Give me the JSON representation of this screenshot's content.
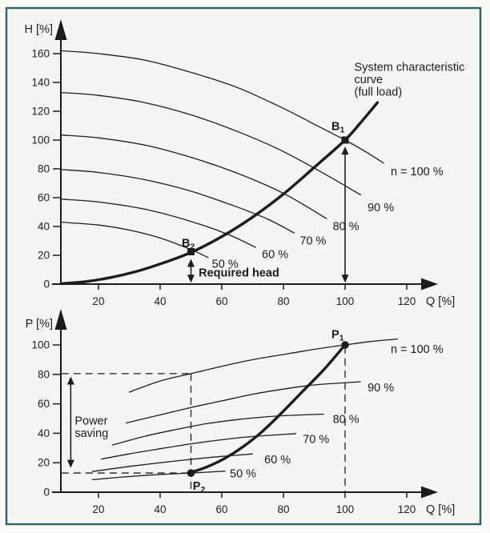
{
  "frame": {
    "border_color": "#2e6366",
    "inner_background": "#f5f5f1",
    "line_color": "#1c1c1c"
  },
  "chart_data": [
    {
      "type": "line",
      "panel": "top",
      "xlabel": "Q [%]",
      "ylabel": "H [%]",
      "xlim": [
        0,
        130
      ],
      "ylim": [
        0,
        175
      ],
      "xticks": [
        20,
        40,
        60,
        80,
        100,
        120
      ],
      "yticks": [
        0,
        20,
        40,
        60,
        80,
        100,
        120,
        140,
        160
      ],
      "grid": false,
      "series": [
        {
          "name": "system-characteristic-curve",
          "thick": true,
          "points": [
            [
              8,
              0.3
            ],
            [
              16,
              1.8
            ],
            [
              24,
              4.6
            ],
            [
              32,
              8.6
            ],
            [
              40,
              14
            ],
            [
              50,
              22
            ],
            [
              60,
              33
            ],
            [
              70,
              46.5
            ],
            [
              80,
              62.5
            ],
            [
              90,
              81
            ],
            [
              100,
              100
            ],
            [
              105,
              112
            ],
            [
              110.5,
              126
            ]
          ]
        },
        {
          "name": "pump-curve-n100",
          "label": "n = 100 %",
          "label_at": [
            114.8,
            78
          ],
          "points": [
            [
              8,
              162
            ],
            [
              20,
              160
            ],
            [
              35,
              155.5
            ],
            [
              50,
              147
            ],
            [
              65,
              136.5
            ],
            [
              80,
              122
            ],
            [
              90,
              111
            ],
            [
              100,
              100
            ],
            [
              107,
              91.5
            ],
            [
              112.5,
              84
            ]
          ]
        },
        {
          "name": "pump-curve-n90",
          "label": "90 %",
          "label_at": [
            107.3,
            53
          ],
          "points": [
            [
              8,
              133
            ],
            [
              20,
              131
            ],
            [
              35,
              126
            ],
            [
              50,
              117.5
            ],
            [
              65,
              106
            ],
            [
              80,
              92
            ],
            [
              95,
              74.5
            ],
            [
              105,
              62
            ]
          ]
        },
        {
          "name": "pump-curve-n80",
          "label": "80 %",
          "label_at": [
            96,
            40
          ],
          "points": [
            [
              8,
              103.5
            ],
            [
              20,
              101.5
            ],
            [
              35,
              96.5
            ],
            [
              50,
              88
            ],
            [
              65,
              77
            ],
            [
              80,
              63
            ],
            [
              94,
              45.5
            ]
          ]
        },
        {
          "name": "pump-curve-n70",
          "label": "70 %",
          "label_at": [
            85.3,
            30
          ],
          "points": [
            [
              8,
              79.5
            ],
            [
              20,
              77.5
            ],
            [
              35,
              72.5
            ],
            [
              50,
              64.5
            ],
            [
              65,
              53.5
            ],
            [
              75,
              45
            ],
            [
              83.5,
              35.5
            ]
          ]
        },
        {
          "name": "pump-curve-n60",
          "label": "60 %",
          "label_at": [
            73,
            20.6
          ],
          "points": [
            [
              8,
              59
            ],
            [
              20,
              57
            ],
            [
              35,
              52
            ],
            [
              50,
              43.5
            ],
            [
              62,
              34.5
            ],
            [
              71,
              25.5
            ]
          ]
        },
        {
          "name": "pump-curve-n50",
          "label": "50 %",
          "label_at": [
            56.8,
            14
          ],
          "points": [
            [
              8,
              43
            ],
            [
              20,
              41
            ],
            [
              30,
              37.5
            ],
            [
              40,
              32
            ],
            [
              50,
              24
            ],
            [
              55.5,
              18.5
            ]
          ]
        }
      ],
      "markers": [
        {
          "name": "duty-point-B1",
          "shape": "square",
          "at": [
            100,
            100
          ],
          "text": "B",
          "sub": "1",
          "label_at": [
            95.6,
            107
          ]
        },
        {
          "name": "duty-point-B2",
          "shape": "square",
          "at": [
            50,
            22.5
          ],
          "text": "B",
          "sub": "2",
          "label_at": [
            47,
            25.8
          ]
        }
      ],
      "double_arrows": [
        {
          "name": "full-load-head-arrow",
          "x": 100,
          "v1": 1,
          "v2": 95.5
        },
        {
          "name": "required-head-arrow",
          "x": 50,
          "v1": 1,
          "v2": 17.5
        }
      ],
      "dashed_lines": [],
      "annotations": [
        {
          "name": "system-curve-label",
          "lines": [
            "System characteristic",
            "curve",
            "(full load)"
          ],
          "at": [
            103,
            148
          ],
          "bold": false
        },
        {
          "name": "required-head-label",
          "lines": [
            "Required head"
          ],
          "at": [
            52.5,
            5.2
          ],
          "bold": true
        }
      ]
    },
    {
      "type": "line",
      "panel": "bottom",
      "xlabel": "Q [%]",
      "ylabel": "P [%]",
      "xlim": [
        0,
        130
      ],
      "ylim": [
        0,
        115
      ],
      "xticks": [
        20,
        40,
        60,
        80,
        100,
        120
      ],
      "yticks": [
        0,
        20,
        40,
        60,
        80,
        100
      ],
      "grid": false,
      "series": [
        {
          "name": "power-curve-n100",
          "label": "n = 100 %",
          "label_at": [
            114.8,
            97
          ],
          "points": [
            [
              30,
              68
            ],
            [
              40,
              75.5
            ],
            [
              50,
              80.5
            ],
            [
              60,
              85.5
            ],
            [
              70,
              90
            ],
            [
              80,
              93.5
            ],
            [
              90,
              97
            ],
            [
              100,
              100
            ],
            [
              108,
              102.3
            ],
            [
              117,
              104
            ]
          ]
        },
        {
          "name": "power-curve-n90",
          "label": "90 %",
          "label_at": [
            107.3,
            71
          ],
          "points": [
            [
              29,
              47
            ],
            [
              40,
              52.5
            ],
            [
              50,
              57.5
            ],
            [
              60,
              62
            ],
            [
              70,
              66.5
            ],
            [
              80,
              70
            ],
            [
              90,
              72.8
            ],
            [
              105,
              75
            ]
          ]
        },
        {
          "name": "power-curve-n80",
          "label": "80 %",
          "label_at": [
            96,
            49.5
          ],
          "points": [
            [
              24.5,
              32
            ],
            [
              35,
              38
            ],
            [
              45,
              42.5
            ],
            [
              55,
              46.5
            ],
            [
              65,
              49.3
            ],
            [
              75,
              51.3
            ],
            [
              85,
              52.4
            ],
            [
              93,
              53
            ]
          ]
        },
        {
          "name": "power-curve-n70",
          "label": "70 %",
          "label_at": [
            86.3,
            35.8
          ],
          "points": [
            [
              21,
              22.5
            ],
            [
              30,
              26
            ],
            [
              40,
              29.5
            ],
            [
              50,
              32.8
            ],
            [
              60,
              35.6
            ],
            [
              70,
              37.8
            ],
            [
              84,
              39.8
            ]
          ]
        },
        {
          "name": "power-curve-n60",
          "label": "60 %",
          "label_at": [
            73.8,
            22
          ],
          "points": [
            [
              18,
              14
            ],
            [
              30,
              17.5
            ],
            [
              40,
              20
            ],
            [
              50,
              22.3
            ],
            [
              60,
              24.3
            ],
            [
              70,
              26
            ]
          ]
        },
        {
          "name": "power-curve-n50",
          "label": "50 %",
          "label_at": [
            62.6,
            12.5
          ],
          "points": [
            [
              18,
              8.5
            ],
            [
              28,
              10.3
            ],
            [
              38,
              11.8
            ],
            [
              50,
              13
            ],
            [
              61,
              14.3
            ]
          ]
        },
        {
          "name": "control-power-curve",
          "thick": true,
          "points": [
            [
              50,
              13.5
            ],
            [
              55,
              17
            ],
            [
              61,
              23
            ],
            [
              67,
              31
            ],
            [
              73,
              41
            ],
            [
              79,
              53
            ],
            [
              86,
              68
            ],
            [
              93,
              83
            ],
            [
              100,
              100
            ]
          ]
        }
      ],
      "markers": [
        {
          "name": "power-point-P1",
          "shape": "circle",
          "at": [
            100,
            100
          ],
          "text": "P",
          "sub": "1",
          "label_at": [
            95.6,
            104.5
          ]
        },
        {
          "name": "power-point-P2",
          "shape": "circle",
          "at": [
            50,
            13
          ],
          "text": "P",
          "sub": "2",
          "label_at": [
            50.6,
            1.5
          ]
        }
      ],
      "double_arrows": [
        {
          "name": "power-saving-arrow",
          "x": 11,
          "v1": 16.5,
          "v2": 78.5
        }
      ],
      "dashed_lines": [
        {
          "name": "full-power-dash-h",
          "from": [
            8,
            80.5
          ],
          "to": [
            50,
            80.5
          ]
        },
        {
          "name": "q50-dash-v",
          "from": [
            50,
            80.5
          ],
          "to": [
            50,
            0.5
          ]
        },
        {
          "name": "reduced-power-dash-h",
          "from": [
            8,
            13
          ],
          "to": [
            49,
            13
          ]
        },
        {
          "name": "q100-dash-v",
          "from": [
            100,
            99
          ],
          "to": [
            100,
            0.5
          ]
        }
      ],
      "annotations": [
        {
          "name": "power-saving-label",
          "lines": [
            "Power",
            "saving"
          ],
          "at": [
            12.3,
            46
          ],
          "bold": false
        }
      ]
    }
  ]
}
